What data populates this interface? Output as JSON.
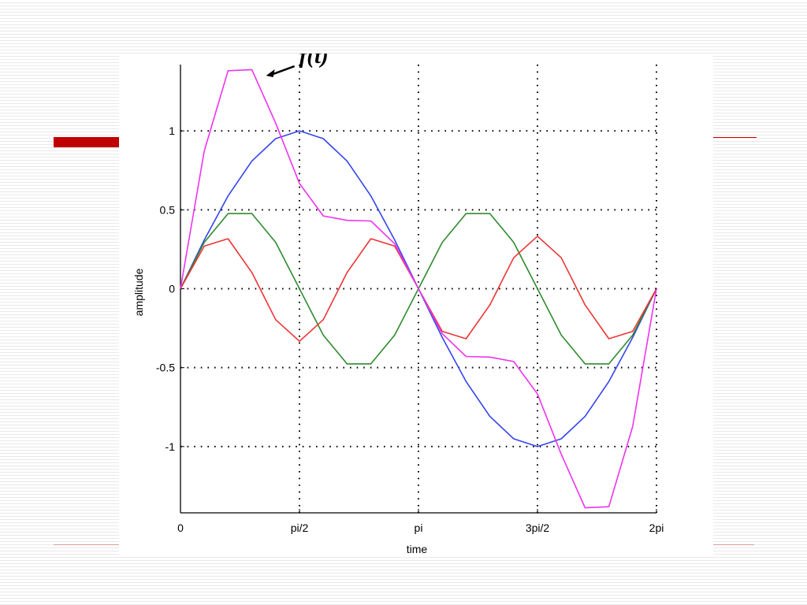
{
  "slide": {
    "accent_color": "#c00000"
  },
  "chart_data": {
    "type": "line",
    "title": "",
    "xlabel": "time",
    "ylabel": "amplitude",
    "xlim": [
      0,
      6.2832
    ],
    "ylim": [
      -1.42,
      1.42
    ],
    "grid": true,
    "x_ticks": [
      {
        "value": 0,
        "label": "0"
      },
      {
        "value": 1.5708,
        "label": "pi/2"
      },
      {
        "value": 3.1416,
        "label": "pi"
      },
      {
        "value": 4.7124,
        "label": "3pi/2"
      },
      {
        "value": 6.2832,
        "label": "2pi"
      }
    ],
    "y_ticks": [
      {
        "value": 1,
        "label": "1"
      },
      {
        "value": 0.5,
        "label": "0.5"
      },
      {
        "value": 0,
        "label": "0"
      },
      {
        "value": -0.5,
        "label": "-0.5"
      },
      {
        "value": -1,
        "label": "-1"
      }
    ],
    "x": [
      0,
      0.3142,
      0.6283,
      0.9425,
      1.2566,
      1.5708,
      1.885,
      2.1991,
      2.5133,
      2.8274,
      3.1416,
      3.4558,
      3.7699,
      4.0841,
      4.3982,
      4.7124,
      5.0265,
      5.3407,
      5.6549,
      5.969,
      6.2832
    ],
    "series": [
      {
        "color": "#3344ee",
        "values": [
          0,
          0.309,
          0.588,
          0.809,
          0.951,
          1.0,
          0.951,
          0.809,
          0.588,
          0.309,
          0,
          -0.309,
          -0.588,
          -0.809,
          -0.951,
          -1.0,
          -0.951,
          -0.809,
          -0.588,
          -0.309,
          0
        ]
      },
      {
        "color": "#2e8b2e",
        "values": [
          0,
          0.294,
          0.476,
          0.476,
          0.294,
          0,
          -0.294,
          -0.476,
          -0.476,
          -0.294,
          0,
          0.294,
          0.476,
          0.476,
          0.294,
          0,
          -0.294,
          -0.476,
          -0.476,
          -0.294,
          0
        ]
      },
      {
        "color": "#ee3333",
        "values": [
          0,
          0.27,
          0.317,
          0.103,
          -0.196,
          -0.333,
          -0.196,
          0.103,
          0.317,
          0.27,
          0,
          -0.27,
          -0.317,
          -0.103,
          0.196,
          0.333,
          0.196,
          -0.103,
          -0.317,
          -0.27,
          0
        ]
      },
      {
        "color": "#ee33ee",
        "values": [
          0,
          0.873,
          1.381,
          1.388,
          1.049,
          0.667,
          0.461,
          0.433,
          0.429,
          0.285,
          0,
          -0.285,
          -0.429,
          -0.433,
          -0.461,
          -0.667,
          -1.049,
          -1.388,
          -1.381,
          -0.873,
          0
        ]
      }
    ],
    "annotations": [
      {
        "text": "f(t)",
        "points_to_series": 3,
        "x": 1.13,
        "y": 1.37
      }
    ]
  }
}
